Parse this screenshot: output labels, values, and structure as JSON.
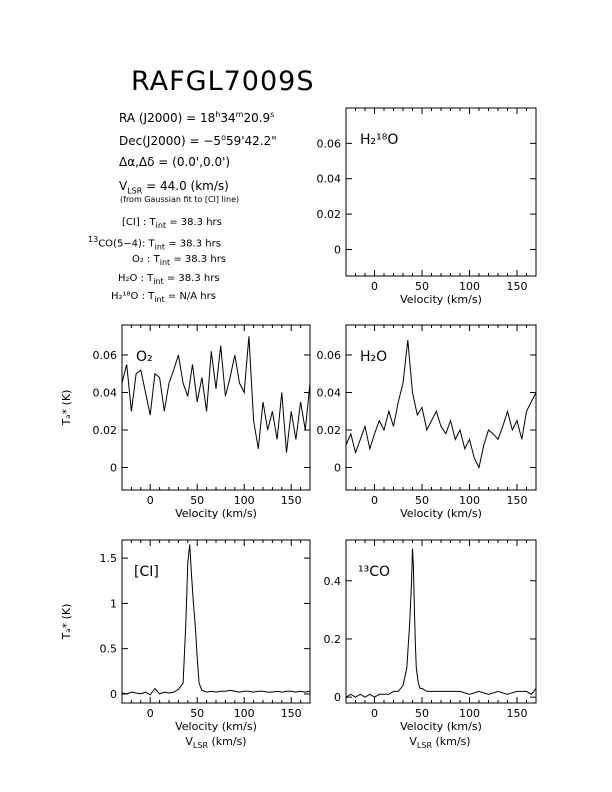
{
  "header": {
    "title": "RAFGL7009S",
    "ra_label": "RA (J2000) = ",
    "ra_h": "18",
    "ra_m": "34",
    "ra_s": "20.9",
    "dec_label": "Dec(J2000) = ",
    "dec_d": "−5",
    "dec_rest": "59'42.2\"",
    "offset": "Δα,Δδ = (0.0',0.0')",
    "vlsr_value": " = 44.0 (km/s)",
    "vlsr_note": "(from Gaussian fit to [CI] line)",
    "tint": [
      {
        "species": "[CI] :",
        "value": " = 38.3 hrs"
      },
      {
        "species": "CO(5−4):",
        "value": " = 38.3 hrs"
      },
      {
        "species": "O₂ :",
        "value": " = 38.3 hrs"
      },
      {
        "species": "H₂O :",
        "value": " = 38.3 hrs"
      },
      {
        "species": "H₂¹⁸O :",
        "value": " = N/A hrs"
      }
    ]
  },
  "chart_data": [
    {
      "type": "line",
      "panel": "H2-18O",
      "label": "H₂¹⁸O",
      "xlabel": "Velocity (km/s)",
      "ylabel": "",
      "xlim": [
        -30,
        170
      ],
      "ylim": [
        -0.015,
        0.08
      ],
      "xticks": [
        0,
        50,
        100,
        150
      ],
      "yticks": [
        0,
        0.02,
        0.04,
        0.06
      ],
      "ytick_labels": [
        "0",
        "0.02",
        "0.04",
        "0.06"
      ],
      "x": [],
      "y": []
    },
    {
      "type": "line",
      "panel": "O2",
      "label": "O₂",
      "xlabel": "Velocity (km/s)",
      "ylabel": "Tₐ* (K)",
      "xlim": [
        -30,
        170
      ],
      "ylim": [
        -0.012,
        0.076
      ],
      "xticks": [
        0,
        50,
        100,
        150
      ],
      "yticks": [
        0,
        0.02,
        0.04,
        0.06
      ],
      "ytick_labels": [
        "0",
        "0.02",
        "0.04",
        "0.06"
      ],
      "x": [
        -30,
        -25,
        -20,
        -15,
        -10,
        -5,
        0,
        5,
        10,
        15,
        20,
        25,
        30,
        35,
        40,
        45,
        50,
        55,
        60,
        65,
        70,
        75,
        80,
        85,
        90,
        95,
        100,
        105,
        110,
        115,
        120,
        125,
        130,
        135,
        140,
        145,
        150,
        155,
        160,
        165,
        170
      ],
      "y": [
        0.045,
        0.055,
        0.03,
        0.05,
        0.052,
        0.04,
        0.028,
        0.05,
        0.048,
        0.03,
        0.045,
        0.052,
        0.06,
        0.045,
        0.038,
        0.055,
        0.035,
        0.048,
        0.03,
        0.062,
        0.042,
        0.065,
        0.038,
        0.048,
        0.06,
        0.045,
        0.04,
        0.07,
        0.025,
        0.01,
        0.035,
        0.02,
        0.03,
        0.015,
        0.04,
        0.008,
        0.03,
        0.015,
        0.035,
        0.02,
        0.045
      ]
    },
    {
      "type": "line",
      "panel": "H2O",
      "label": "H₂O",
      "xlabel": "Velocity (km/s)",
      "ylabel": "",
      "xlim": [
        -30,
        170
      ],
      "ylim": [
        -0.012,
        0.076
      ],
      "xticks": [
        0,
        50,
        100,
        150
      ],
      "yticks": [
        0,
        0.02,
        0.04,
        0.06
      ],
      "ytick_labels": [
        "0",
        "0.02",
        "0.04",
        "0.06"
      ],
      "x": [
        -30,
        -25,
        -20,
        -15,
        -10,
        -5,
        0,
        5,
        10,
        15,
        20,
        25,
        30,
        35,
        40,
        45,
        50,
        55,
        60,
        65,
        70,
        75,
        80,
        85,
        90,
        95,
        100,
        105,
        110,
        115,
        120,
        125,
        130,
        135,
        140,
        145,
        150,
        155,
        160,
        165,
        170
      ],
      "y": [
        0.012,
        0.018,
        0.008,
        0.015,
        0.022,
        0.01,
        0.018,
        0.025,
        0.02,
        0.03,
        0.022,
        0.035,
        0.045,
        0.068,
        0.04,
        0.028,
        0.032,
        0.02,
        0.025,
        0.03,
        0.022,
        0.018,
        0.025,
        0.015,
        0.02,
        0.01,
        0.015,
        0.005,
        0.0,
        0.012,
        0.02,
        0.018,
        0.015,
        0.022,
        0.03,
        0.02,
        0.025,
        0.015,
        0.03,
        0.035,
        0.04
      ]
    },
    {
      "type": "line",
      "panel": "CI",
      "label": "[CI]",
      "xlabel": "Velocity (km/s)",
      "ylabel": "Tₐ* (K)",
      "xlim": [
        -30,
        170
      ],
      "ylim": [
        -0.1,
        1.7
      ],
      "xticks": [
        0,
        50,
        100,
        150
      ],
      "yticks": [
        0,
        0.5,
        1,
        1.5
      ],
      "ytick_labels": [
        "0",
        "0.5",
        "1",
        "1.5"
      ],
      "x": [
        -30,
        -25,
        -20,
        -15,
        -10,
        -5,
        0,
        5,
        10,
        15,
        20,
        25,
        30,
        35,
        38,
        40,
        42,
        44,
        46,
        48,
        50,
        52,
        55,
        60,
        65,
        70,
        75,
        80,
        85,
        90,
        95,
        100,
        105,
        110,
        115,
        120,
        125,
        130,
        135,
        140,
        145,
        150,
        155,
        160,
        165,
        170
      ],
      "y": [
        0.01,
        0.0,
        0.02,
        0.01,
        0.0,
        0.02,
        -0.01,
        0.06,
        0.0,
        0.02,
        0.01,
        0.02,
        0.05,
        0.12,
        0.8,
        1.45,
        1.65,
        1.3,
        1.0,
        0.75,
        0.4,
        0.12,
        0.04,
        0.02,
        0.03,
        0.02,
        0.03,
        0.03,
        0.04,
        0.03,
        0.02,
        0.03,
        0.03,
        0.02,
        0.03,
        0.03,
        0.02,
        0.02,
        0.03,
        0.02,
        0.03,
        0.03,
        0.02,
        0.03,
        0.02,
        0.03
      ]
    },
    {
      "type": "line",
      "panel": "13CO",
      "label": "¹³CO",
      "xlabel": "Velocity (km/s)",
      "ylabel": "",
      "xlim": [
        -30,
        170
      ],
      "ylim": [
        -0.02,
        0.54
      ],
      "xticks": [
        0,
        50,
        100,
        150
      ],
      "yticks": [
        0,
        0.2,
        0.4
      ],
      "ytick_labels": [
        "0",
        "0.2",
        "0.4"
      ],
      "x": [
        -30,
        -25,
        -20,
        -15,
        -10,
        -5,
        0,
        5,
        10,
        15,
        20,
        25,
        30,
        34,
        37,
        39,
        40,
        41,
        42,
        43,
        44,
        46,
        48,
        50,
        55,
        60,
        70,
        80,
        90,
        100,
        110,
        120,
        130,
        140,
        150,
        160,
        165,
        170
      ],
      "y": [
        0.0,
        0.01,
        0.0,
        0.01,
        0.0,
        0.01,
        0.0,
        0.01,
        0.01,
        0.01,
        0.02,
        0.02,
        0.04,
        0.1,
        0.25,
        0.4,
        0.51,
        0.45,
        0.3,
        0.18,
        0.1,
        0.05,
        0.03,
        0.03,
        0.02,
        0.02,
        0.02,
        0.02,
        0.02,
        0.01,
        0.02,
        0.01,
        0.02,
        0.01,
        0.02,
        0.02,
        0.01,
        0.03
      ]
    }
  ],
  "footer": {
    "velocity_label": "Velocity (km/s)",
    "vlsr_axis": "(km/s)"
  }
}
